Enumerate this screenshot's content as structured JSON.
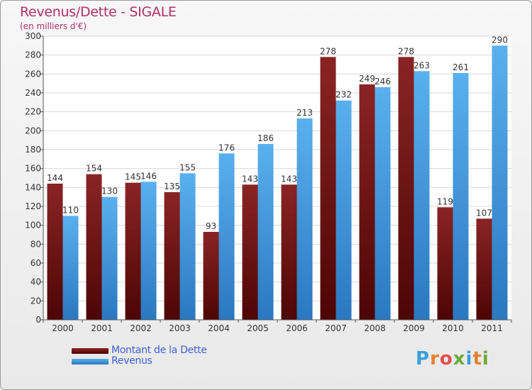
{
  "header": {
    "title": "Revenus/Dette - SIGALE",
    "subtitle": "(en milliers d'€)"
  },
  "logo": {
    "text": "Proxiti"
  },
  "colors": {
    "dette": "#7a1a1a",
    "revenus": "#4aa3e6"
  },
  "chart_data": {
    "type": "bar",
    "title": "Revenus/Dette - SIGALE",
    "subtitle": "(en milliers d'€)",
    "categories": [
      "2000",
      "2001",
      "2002",
      "2003",
      "2004",
      "2005",
      "2006",
      "2007",
      "2008",
      "2009",
      "2010",
      "2011"
    ],
    "series": [
      {
        "name": "Montant de la Dette",
        "values": [
          144,
          154,
          145,
          135,
          93,
          143,
          143,
          278,
          249,
          278,
          119,
          107
        ]
      },
      {
        "name": "Revenus",
        "values": [
          110,
          130,
          146,
          155,
          176,
          186,
          213,
          232,
          246,
          263,
          261,
          290
        ]
      }
    ],
    "ylim": [
      0,
      300
    ],
    "yticks": [
      0,
      20,
      40,
      60,
      80,
      100,
      120,
      140,
      160,
      180,
      200,
      220,
      240,
      260,
      280,
      300
    ],
    "grid": true,
    "legend": "bottom-left"
  }
}
